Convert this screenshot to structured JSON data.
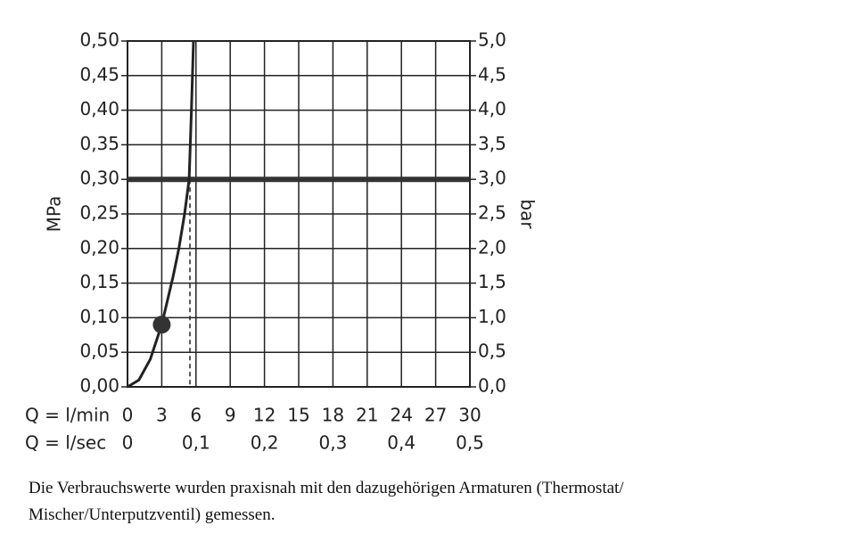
{
  "chart_data": {
    "type": "line",
    "x_label": "Q = l/min",
    "x2_label": "Q = l/sec",
    "y_label": "MPa",
    "y2_label": "bar",
    "xlim": [
      0,
      30
    ],
    "xticks": [
      0,
      3,
      6,
      9,
      12,
      15,
      18,
      21,
      24,
      27,
      30
    ],
    "x2lim": [
      0,
      0.5
    ],
    "x2ticks": [
      0,
      {
        "value": 0.1,
        "label": "0,1"
      },
      {
        "value": 0.2,
        "label": "0,2"
      },
      {
        "value": 0.3,
        "label": "0,3"
      },
      {
        "value": 0.4,
        "label": "0,4"
      },
      {
        "value": 0.5,
        "label": "0,5"
      }
    ],
    "ylim": [
      0,
      0.5
    ],
    "yticks": [
      {
        "value": 0,
        "label": "0,00"
      },
      {
        "value": 0.05,
        "label": "0,05"
      },
      {
        "value": 0.1,
        "label": "0,10"
      },
      {
        "value": 0.15,
        "label": "0,15"
      },
      {
        "value": 0.2,
        "label": "0,20"
      },
      {
        "value": 0.25,
        "label": "0,25"
      },
      {
        "value": 0.3,
        "label": "0,30"
      },
      {
        "value": 0.35,
        "label": "0,35"
      },
      {
        "value": 0.4,
        "label": "0,40"
      },
      {
        "value": 0.45,
        "label": "0,45"
      },
      {
        "value": 0.5,
        "label": "0,50"
      }
    ],
    "y2lim": [
      0,
      5
    ],
    "y2ticks": [
      {
        "value": 0,
        "label": "0,0"
      },
      {
        "value": 0.5,
        "label": "0,5"
      },
      {
        "value": 1,
        "label": "1,0"
      },
      {
        "value": 1.5,
        "label": "1,5"
      },
      {
        "value": 2,
        "label": "2,0"
      },
      {
        "value": 2.5,
        "label": "2,5"
      },
      {
        "value": 3,
        "label": "3,0"
      },
      {
        "value": 3.5,
        "label": "3,5"
      },
      {
        "value": 4,
        "label": "4,0"
      },
      {
        "value": 4.5,
        "label": "4,5"
      },
      {
        "value": 5,
        "label": "5,0"
      }
    ],
    "grid": true,
    "series": [
      {
        "color": "#222222",
        "x": [
          0,
          1,
          2,
          3,
          4,
          4.5,
          5,
          5.4,
          5.6,
          5.78
        ],
        "values": [
          0,
          0.01,
          0.04,
          0.09,
          0.16,
          0.2,
          0.25,
          0.3,
          0.4,
          0.5
        ]
      }
    ],
    "marker": {
      "x": 3,
      "y": 0.09
    },
    "reference_line": {
      "y": 0.3
    },
    "drop_line": {
      "x": 5.47
    }
  },
  "caption": [
    "Die Verbrauchswerte wurden praxisnah mit den dazugehörigen Armaturen (Thermostat/",
    "Mischer/Unterputzventil) gemessen."
  ]
}
